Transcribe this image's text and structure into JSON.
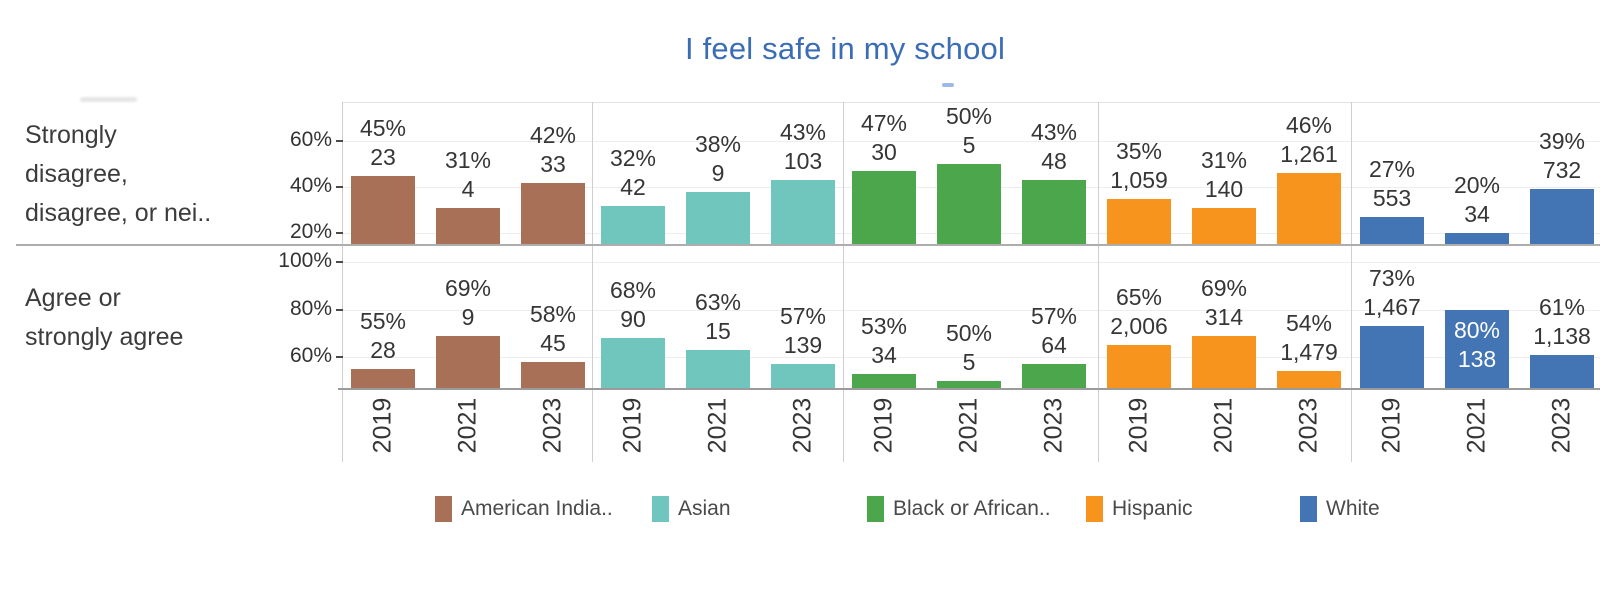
{
  "title": {
    "text": "I feel safe in my school",
    "color": "#3B6DB5"
  },
  "chart_data": {
    "type": "bar",
    "layout": "small-multiples: 2 response rows x 5 race/ethnicity column panels, years on x-axis",
    "grid": "on",
    "legend_position": "bottom",
    "x_categories": [
      "2019",
      "2021",
      "2023"
    ],
    "rows": [
      {
        "slug": "disagree",
        "label": "Strongly disagree, disagree, or nei..",
        "label_lines": [
          "Strongly",
          "disagree,",
          "disagree, or nei.."
        ],
        "axis_min": 15.2,
        "axis_max": 77.1,
        "axis_ticks": [
          {
            "value": 60,
            "label": "60%"
          },
          {
            "value": 40,
            "label": "40%"
          },
          {
            "value": 20,
            "label": "20%"
          }
        ]
      },
      {
        "slug": "agree",
        "label": "Agree or strongly agree",
        "label_lines": [
          "Agree or",
          "strongly agree"
        ],
        "axis_min": 46.6,
        "axis_max": 106.7,
        "axis_ticks": [
          {
            "value": 100,
            "label": "100%"
          },
          {
            "value": 80,
            "label": "80%"
          },
          {
            "value": 60,
            "label": "60%"
          }
        ]
      }
    ],
    "groups": [
      {
        "legend_label": "American India..",
        "slug": "american-indian",
        "color": "#A87157",
        "series": [
          {
            "row": "disagree",
            "bars": [
              {
                "year": "2019",
                "pct": 45,
                "pct_label": "45%",
                "count_label": "23"
              },
              {
                "year": "2021",
                "pct": 31,
                "pct_label": "31%",
                "count_label": "4"
              },
              {
                "year": "2023",
                "pct": 42,
                "pct_label": "42%",
                "count_label": "33"
              }
            ]
          },
          {
            "row": "agree",
            "bars": [
              {
                "year": "2019",
                "pct": 55,
                "pct_label": "55%",
                "count_label": "28"
              },
              {
                "year": "2021",
                "pct": 69,
                "pct_label": "69%",
                "count_label": "9"
              },
              {
                "year": "2023",
                "pct": 58,
                "pct_label": "58%",
                "count_label": "45"
              }
            ]
          }
        ]
      },
      {
        "legend_label": "Asian",
        "slug": "asian",
        "color": "#70C5BD",
        "series": [
          {
            "row": "disagree",
            "bars": [
              {
                "year": "2019",
                "pct": 32,
                "pct_label": "32%",
                "count_label": "42"
              },
              {
                "year": "2021",
                "pct": 38,
                "pct_label": "38%",
                "count_label": "9"
              },
              {
                "year": "2023",
                "pct": 43,
                "pct_label": "43%",
                "count_label": "103"
              }
            ]
          },
          {
            "row": "agree",
            "bars": [
              {
                "year": "2019",
                "pct": 68,
                "pct_label": "68%",
                "count_label": "90"
              },
              {
                "year": "2021",
                "pct": 63,
                "pct_label": "63%",
                "count_label": "15"
              },
              {
                "year": "2023",
                "pct": 57,
                "pct_label": "57%",
                "count_label": "139"
              }
            ]
          }
        ]
      },
      {
        "legend_label": "Black or African..",
        "slug": "black-or-african-american",
        "color": "#4CA64C",
        "series": [
          {
            "row": "disagree",
            "bars": [
              {
                "year": "2019",
                "pct": 47,
                "pct_label": "47%",
                "count_label": "30"
              },
              {
                "year": "2021",
                "pct": 50,
                "pct_label": "50%",
                "count_label": "5"
              },
              {
                "year": "2023",
                "pct": 43,
                "pct_label": "43%",
                "count_label": "48"
              }
            ]
          },
          {
            "row": "agree",
            "bars": [
              {
                "year": "2019",
                "pct": 53,
                "pct_label": "53%",
                "count_label": "34"
              },
              {
                "year": "2021",
                "pct": 50,
                "pct_label": "50%",
                "count_label": "5"
              },
              {
                "year": "2023",
                "pct": 57,
                "pct_label": "57%",
                "count_label": "64"
              }
            ]
          }
        ]
      },
      {
        "legend_label": "Hispanic",
        "slug": "hispanic",
        "color": "#F6941E",
        "series": [
          {
            "row": "disagree",
            "bars": [
              {
                "year": "2019",
                "pct": 35,
                "pct_label": "35%",
                "count_label": "1,059"
              },
              {
                "year": "2021",
                "pct": 31,
                "pct_label": "31%",
                "count_label": "140"
              },
              {
                "year": "2023",
                "pct": 46,
                "pct_label": "46%",
                "count_label": "1,261"
              }
            ]
          },
          {
            "row": "agree",
            "bars": [
              {
                "year": "2019",
                "pct": 65,
                "pct_label": "65%",
                "count_label": "2,006"
              },
              {
                "year": "2021",
                "pct": 69,
                "pct_label": "69%",
                "count_label": "314"
              },
              {
                "year": "2023",
                "pct": 54,
                "pct_label": "54%",
                "count_label": "1,479"
              }
            ]
          }
        ]
      },
      {
        "legend_label": "White",
        "slug": "white",
        "color": "#4374B3",
        "series": [
          {
            "row": "disagree",
            "bars": [
              {
                "year": "2019",
                "pct": 27,
                "pct_label": "27%",
                "count_label": "553"
              },
              {
                "year": "2021",
                "pct": 20,
                "pct_label": "20%",
                "count_label": "34"
              },
              {
                "year": "2023",
                "pct": 39,
                "pct_label": "39%",
                "count_label": "732"
              }
            ]
          },
          {
            "row": "agree",
            "bars": [
              {
                "year": "2019",
                "pct": 73,
                "pct_label": "73%",
                "count_label": "1,467"
              },
              {
                "year": "2021",
                "pct": 80,
                "pct_label": "80%",
                "count_label": "138",
                "label_inside": true
              },
              {
                "year": "2023",
                "pct": 61,
                "pct_label": "61%",
                "count_label": "1,138"
              }
            ]
          }
        ]
      }
    ]
  }
}
